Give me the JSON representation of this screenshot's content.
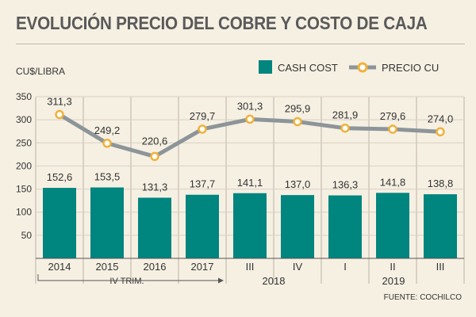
{
  "chart_data": {
    "type": "bar+line",
    "title": "EVOLUCIÓN PRECIO DEL COBRE Y COSTO DE CAJA",
    "ylabel": "CU$/LIBRA",
    "ylim": [
      0,
      350
    ],
    "yticks": [
      50,
      100,
      150,
      200,
      250,
      300,
      350
    ],
    "categories": [
      "2014",
      "2015",
      "2016",
      "2017",
      "III",
      "IV",
      "I",
      "II",
      "III"
    ],
    "series": [
      {
        "name": "CASH COST",
        "type": "bar",
        "color": "#00857f",
        "values": [
          152.6,
          153.5,
          131.3,
          137.7,
          141.1,
          137.0,
          136.3,
          141.8,
          138.8
        ],
        "labels": [
          "152,6",
          "153,5",
          "131,3",
          "137,7",
          "141,1",
          "137,0",
          "136,3",
          "141,8",
          "138,8"
        ]
      },
      {
        "name": "PRECIO CU",
        "type": "line",
        "color": "#8d9599",
        "marker_color": "#f0b23a",
        "values": [
          311.3,
          249.2,
          220.6,
          279.7,
          301.3,
          295.9,
          281.9,
          279.6,
          274.0
        ],
        "labels": [
          "311,3",
          "249,2",
          "220,6",
          "279,7",
          "301,3",
          "295,9",
          "281,9",
          "279,6",
          "274,0"
        ]
      }
    ],
    "group_labels": {
      "iv_trim": "IV TRIM.",
      "y2018": "2018",
      "y2019": "2019"
    },
    "source": "FUENTE: COCHILCO",
    "grid": true,
    "legend": "top-right"
  }
}
